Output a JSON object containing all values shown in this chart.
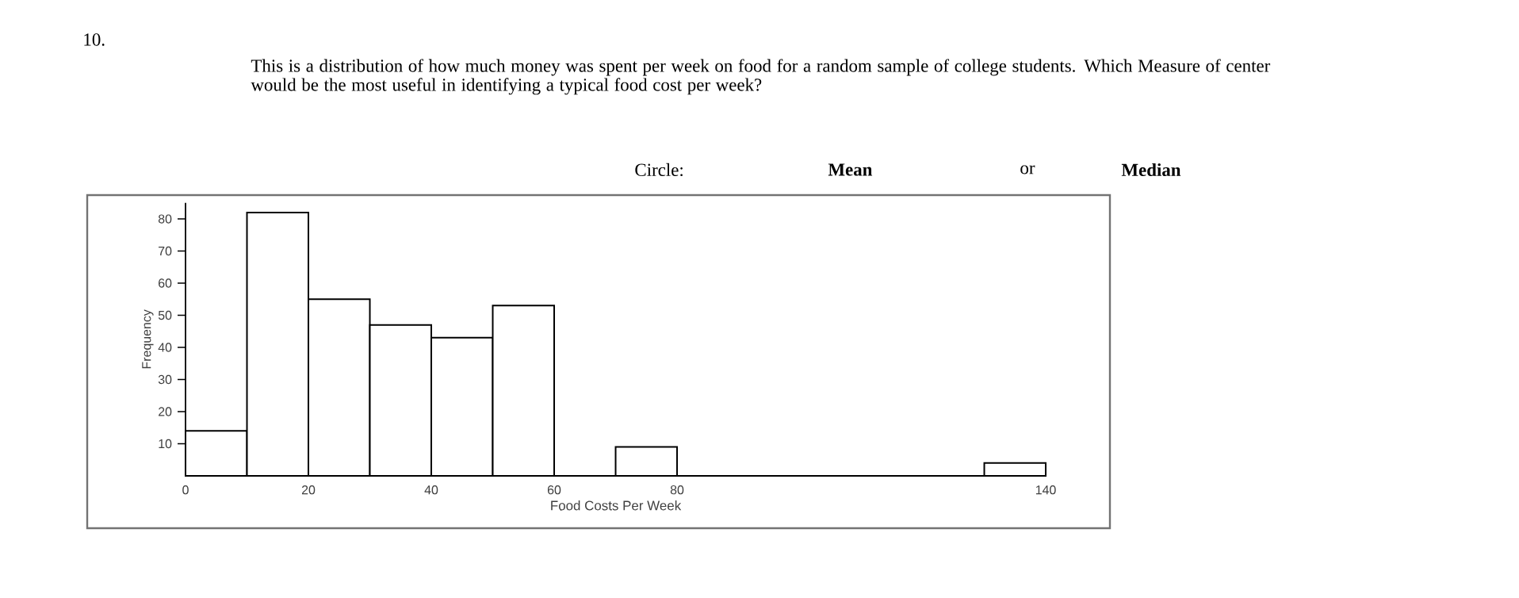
{
  "chart_data": {
    "type": "histogram",
    "annotations": [
      "10.",
      "This is a distribution of how much money was spent per week on food for a random sample of college students.  Which Measure of center would be the most useful in identifying a typical food cost per week?",
      "Circle:",
      "Mean",
      "or",
      "Median"
    ],
    "xlabel": "Food Costs Per Week",
    "ylabel": "Frequency",
    "bins": [
      0,
      10,
      20,
      30,
      40,
      50,
      60,
      70,
      80,
      130,
      140
    ],
    "values": [
      14,
      82,
      55,
      47,
      43,
      53,
      0,
      9,
      0,
      4
    ],
    "xlim": [
      0,
      140
    ],
    "ylim": [
      0,
      85
    ],
    "xticks": [
      0,
      20,
      40,
      60,
      80,
      140
    ],
    "yticks": [
      10,
      20,
      30,
      40,
      50,
      60,
      70,
      80
    ],
    "grid": false
  }
}
